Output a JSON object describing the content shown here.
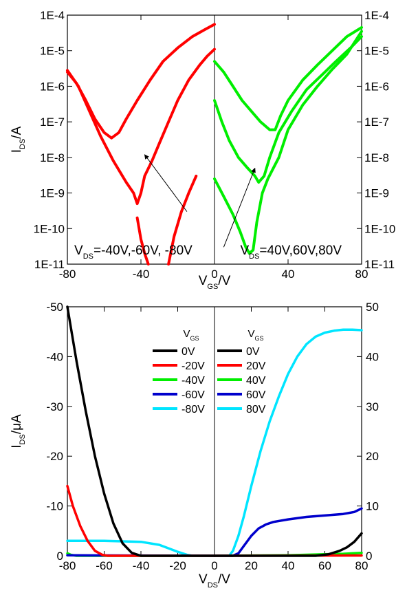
{
  "chart_data": [
    {
      "type": "line",
      "yscale": "log",
      "xlim": [
        -80,
        80
      ],
      "ylim": [
        1e-11,
        0.0001
      ],
      "xticks": [
        "-80",
        "-40",
        "0",
        "40",
        "80"
      ],
      "yticks": [
        "1E-11",
        "1E-10",
        "1E-9",
        "1E-8",
        "1E-7",
        "1E-6",
        "1E-5",
        "1E-4"
      ],
      "xlabel": {
        "main": "V",
        "sub": "GS",
        "tail": "/V"
      },
      "ylabel": {
        "main": "I",
        "sub": "DS",
        "tail": "/A"
      },
      "annotation_left": {
        "main": "V",
        "sub": "DS",
        "tail": "=-40V,-60V, -80V"
      },
      "annotation_right": {
        "main": "V",
        "sub": "DS",
        "tail": "=40V,60V,80V"
      },
      "grid": false,
      "series": [
        {
          "color": "#ff0000",
          "points": [
            [
              -80,
              2.5e-06
            ],
            [
              -75,
              1.2e-06
            ],
            [
              -70,
              4e-07
            ],
            [
              -65,
              1.2e-07
            ],
            [
              -60,
              5e-08
            ],
            [
              -56,
              3.5e-08
            ],
            [
              -52,
              5e-08
            ],
            [
              -48,
              1.2e-07
            ],
            [
              -42,
              4e-07
            ],
            [
              -35,
              1.5e-06
            ],
            [
              -28,
              5e-06
            ],
            [
              -20,
              1.2e-05
            ],
            [
              -12,
              2.5e-05
            ],
            [
              -5,
              4e-05
            ],
            [
              0,
              5.5e-05
            ]
          ]
        },
        {
          "color": "#ff0000",
          "points": [
            [
              -80,
              2.8e-06
            ],
            [
              -74,
              1e-06
            ],
            [
              -68,
              2e-07
            ],
            [
              -62,
              4e-08
            ],
            [
              -55,
              8e-09
            ],
            [
              -48,
              2e-09
            ],
            [
              -44,
              1e-09
            ],
            [
              -42,
              5e-10
            ],
            [
              -40,
              1e-09
            ],
            [
              -38,
              3e-09
            ],
            [
              -34,
              8e-09
            ],
            [
              -30,
              2.5e-08
            ],
            [
              -25,
              1e-07
            ],
            [
              -20,
              4e-07
            ],
            [
              -14,
              1.5e-06
            ],
            [
              -8,
              4e-06
            ],
            [
              -4,
              7e-06
            ],
            [
              0,
              1.1e-05
            ]
          ]
        },
        {
          "color": "#ff0000",
          "points": [
            [
              -42,
              2e-10
            ],
            [
              -40,
              5e-11
            ],
            [
              -38,
              2e-11
            ],
            [
              -36,
              1e-11
            ]
          ]
        },
        {
          "color": "#ff0000",
          "points": [
            [
              -25,
              1e-11
            ],
            [
              -22,
              6e-11
            ],
            [
              -18,
              3e-10
            ],
            [
              -14,
              1e-09
            ],
            [
              -10,
              3e-09
            ]
          ]
        },
        {
          "color": "#00ee00",
          "points": [
            [
              0,
              5e-06
            ],
            [
              5,
              2.5e-06
            ],
            [
              10,
              1e-06
            ],
            [
              15,
              4e-07
            ],
            [
              20,
              2e-07
            ],
            [
              25,
              1e-07
            ],
            [
              30,
              6e-08
            ],
            [
              33,
              6e-08
            ],
            [
              36,
              1.5e-07
            ],
            [
              40,
              4e-07
            ],
            [
              48,
              1.5e-06
            ],
            [
              56,
              4e-06
            ],
            [
              64,
              1e-05
            ],
            [
              72,
              2.5e-05
            ],
            [
              80,
              4.5e-05
            ]
          ]
        },
        {
          "color": "#00ee00",
          "points": [
            [
              0,
              4e-07
            ],
            [
              4,
              1e-07
            ],
            [
              8,
              3e-08
            ],
            [
              13,
              1e-08
            ],
            [
              18,
              5e-09
            ],
            [
              22,
              3e-09
            ],
            [
              24,
              2e-09
            ],
            [
              27,
              3e-09
            ],
            [
              30,
              1e-08
            ],
            [
              35,
              5e-08
            ],
            [
              42,
              2e-07
            ],
            [
              50,
              8e-07
            ],
            [
              58,
              2e-06
            ],
            [
              66,
              5e-06
            ],
            [
              74,
              1.2e-05
            ],
            [
              80,
              2.5e-05
            ]
          ]
        },
        {
          "color": "#00ee00",
          "points": [
            [
              0,
              2.5e-09
            ],
            [
              5,
              8e-10
            ],
            [
              10,
              2.5e-10
            ],
            [
              14,
              8e-11
            ],
            [
              17,
              3e-11
            ],
            [
              19,
              2e-11
            ],
            [
              21,
              2.5e-11
            ],
            [
              23,
              1.5e-10
            ],
            [
              26,
              1e-09
            ],
            [
              29,
              2.5e-09
            ],
            [
              32,
              5e-09
            ],
            [
              35,
              1e-08
            ],
            [
              40,
              6e-08
            ],
            [
              48,
              3e-07
            ],
            [
              56,
              1e-06
            ],
            [
              64,
              3e-06
            ],
            [
              72,
              8e-06
            ],
            [
              80,
              3.5e-05
            ]
          ]
        }
      ],
      "arrows": [
        {
          "from": [
            -15,
            3e-10
          ],
          "to": [
            -38,
            1.2e-08
          ]
        },
        {
          "from": [
            5,
            3e-11
          ],
          "to": [
            22,
            5e-09
          ]
        }
      ]
    },
    {
      "type": "line",
      "xlim": [
        -80,
        80
      ],
      "ylim": [
        0,
        50
      ],
      "xticks": [
        "-80",
        "-60",
        "-40",
        "-20",
        "0",
        "20",
        "40",
        "60",
        "80"
      ],
      "yticks_left": [
        "0",
        "-10",
        "-20",
        "-30",
        "-40",
        "-50"
      ],
      "yticks_right": [
        "0",
        "10",
        "20",
        "30",
        "40",
        "50"
      ],
      "xlabel": {
        "main": "V",
        "sub": "DS",
        "tail": "/V"
      },
      "ylabel": {
        "main": "I",
        "sub": "DS",
        "tail": "/μA"
      },
      "legend_left": {
        "title_main": "V",
        "title_sub": "GS",
        "entries": [
          {
            "name": "0V",
            "color": "#000000"
          },
          {
            "name": "-20V",
            "color": "#ff0000"
          },
          {
            "name": "-40V",
            "color": "#00ee00"
          },
          {
            "name": "-60V",
            "color": "#0000cc"
          },
          {
            "name": "-80V",
            "color": "#00e5ff"
          }
        ]
      },
      "legend_right": {
        "title_main": "V",
        "title_sub": "GS",
        "entries": [
          {
            "name": "0V",
            "color": "#000000"
          },
          {
            "name": "20V",
            "color": "#ff0000"
          },
          {
            "name": "40V",
            "color": "#00ee00"
          },
          {
            "name": "60V",
            "color": "#0000cc"
          },
          {
            "name": "80V",
            "color": "#00e5ff"
          }
        ]
      },
      "grid": false,
      "series": [
        {
          "name": "0V",
          "color": "#000000",
          "points": [
            [
              -80,
              50
            ],
            [
              -75,
              39
            ],
            [
              -70,
              29
            ],
            [
              -65,
              20
            ],
            [
              -60,
              12.5
            ],
            [
              -55,
              6.5
            ],
            [
              -50,
              2.5
            ],
            [
              -45,
              0.6
            ],
            [
              -40,
              0
            ],
            [
              -35,
              0
            ],
            [
              0,
              0
            ]
          ]
        },
        {
          "name": "-20V",
          "color": "#ff0000",
          "points": [
            [
              -80,
              14
            ],
            [
              -77,
              10
            ],
            [
              -73,
              6
            ],
            [
              -69,
              3
            ],
            [
              -65,
              1
            ],
            [
              -61,
              0.2
            ],
            [
              -58,
              0
            ],
            [
              0,
              0
            ]
          ]
        },
        {
          "name": "-40V",
          "color": "#00ee00",
          "points": [
            [
              -80,
              0.5
            ],
            [
              -78,
              0.2
            ],
            [
              -75,
              0
            ],
            [
              0,
              0
            ]
          ]
        },
        {
          "name": "-60V",
          "color": "#0000cc",
          "points": [
            [
              -80,
              0.1
            ],
            [
              0,
              0
            ]
          ]
        },
        {
          "name": "-80V",
          "color": "#00e5ff",
          "points": [
            [
              -80,
              3
            ],
            [
              -60,
              3
            ],
            [
              -40,
              2.8
            ],
            [
              -30,
              2.2
            ],
            [
              -25,
              1.5
            ],
            [
              -20,
              0.8
            ],
            [
              -15,
              0.2
            ],
            [
              -12,
              0
            ],
            [
              0,
              0
            ]
          ]
        },
        {
          "name": "0V",
          "color": "#000000",
          "points": [
            [
              0,
              0
            ],
            [
              55,
              0
            ],
            [
              62,
              0.3
            ],
            [
              68,
              1
            ],
            [
              72,
              1.7
            ],
            [
              76,
              2.8
            ],
            [
              80,
              4.5
            ]
          ]
        },
        {
          "name": "20V",
          "color": "#ff0000",
          "points": [
            [
              0,
              0
            ],
            [
              80,
              0.05
            ]
          ]
        },
        {
          "name": "40V",
          "color": "#00ee00",
          "points": [
            [
              0,
              0
            ],
            [
              40,
              0.1
            ],
            [
              60,
              0.3
            ],
            [
              70,
              0.4
            ],
            [
              80,
              0.6
            ]
          ]
        },
        {
          "name": "60V",
          "color": "#0000cc",
          "points": [
            [
              0,
              0
            ],
            [
              10,
              0
            ],
            [
              13,
              0.5
            ],
            [
              16,
              2
            ],
            [
              20,
              4
            ],
            [
              24,
              5.5
            ],
            [
              28,
              6.3
            ],
            [
              32,
              6.8
            ],
            [
              40,
              7.3
            ],
            [
              50,
              7.8
            ],
            [
              60,
              8.1
            ],
            [
              70,
              8.4
            ],
            [
              76,
              8.8
            ],
            [
              80,
              9.5
            ]
          ]
        },
        {
          "name": "80V",
          "color": "#00e5ff",
          "points": [
            [
              0,
              0
            ],
            [
              8,
              0
            ],
            [
              10,
              1
            ],
            [
              13,
              4
            ],
            [
              16,
              8
            ],
            [
              20,
              14
            ],
            [
              25,
              21
            ],
            [
              30,
              27
            ],
            [
              35,
              32
            ],
            [
              40,
              36.5
            ],
            [
              45,
              40
            ],
            [
              50,
              42.5
            ],
            [
              55,
              44
            ],
            [
              60,
              44.8
            ],
            [
              65,
              45.2
            ],
            [
              70,
              45.4
            ],
            [
              75,
              45.4
            ],
            [
              80,
              45.3
            ]
          ]
        }
      ]
    }
  ]
}
